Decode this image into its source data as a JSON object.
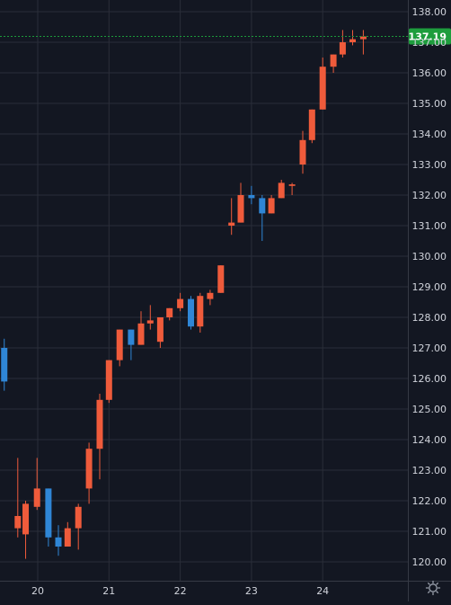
{
  "chart_data": {
    "type": "candlestick",
    "title": "",
    "xlabel": "",
    "ylabel": "",
    "ylim": [
      119.5,
      138.3
    ],
    "xlim": [
      19.52,
      24.95
    ],
    "grid": true,
    "y_ticks": [
      "120.00",
      "121.00",
      "122.00",
      "123.00",
      "124.00",
      "125.00",
      "126.00",
      "127.00",
      "128.00",
      "129.00",
      "130.00",
      "131.00",
      "132.00",
      "133.00",
      "134.00",
      "135.00",
      "136.00",
      "137.00",
      "138.00"
    ],
    "x_ticks": [
      "20",
      "21",
      "22",
      "23",
      "24"
    ],
    "last_price": "137.19",
    "candles": [
      {
        "x": 19.53,
        "open": 127.0,
        "high": 127.3,
        "low": 125.6,
        "close": 125.9
      },
      {
        "x": 19.72,
        "open": 121.1,
        "high": 123.4,
        "low": 120.8,
        "close": 121.5
      },
      {
        "x": 19.83,
        "open": 120.9,
        "high": 122.0,
        "low": 120.1,
        "close": 121.9
      },
      {
        "x": 19.99,
        "open": 121.8,
        "high": 123.4,
        "low": 121.7,
        "close": 122.4
      },
      {
        "x": 20.15,
        "open": 122.4,
        "high": 122.4,
        "low": 120.5,
        "close": 120.8
      },
      {
        "x": 20.29,
        "open": 120.8,
        "high": 121.2,
        "low": 120.2,
        "close": 120.5
      },
      {
        "x": 20.42,
        "open": 120.5,
        "high": 121.3,
        "low": 120.5,
        "close": 121.1
      },
      {
        "x": 20.57,
        "open": 121.1,
        "high": 121.9,
        "low": 120.4,
        "close": 121.8
      },
      {
        "x": 20.72,
        "open": 122.4,
        "high": 123.9,
        "low": 121.9,
        "close": 123.7
      },
      {
        "x": 20.87,
        "open": 123.7,
        "high": 125.5,
        "low": 122.7,
        "close": 125.3
      },
      {
        "x": 21.0,
        "open": 125.3,
        "high": 126.6,
        "low": 125.2,
        "close": 126.6
      },
      {
        "x": 21.15,
        "open": 126.6,
        "high": 127.6,
        "low": 126.4,
        "close": 127.6
      },
      {
        "x": 21.31,
        "open": 127.6,
        "high": 127.6,
        "low": 126.6,
        "close": 127.1
      },
      {
        "x": 21.45,
        "open": 127.1,
        "high": 128.2,
        "low": 127.1,
        "close": 127.8
      },
      {
        "x": 21.58,
        "open": 127.8,
        "high": 128.4,
        "low": 127.6,
        "close": 127.9
      },
      {
        "x": 21.72,
        "open": 127.2,
        "high": 128.0,
        "low": 127.0,
        "close": 128.0
      },
      {
        "x": 21.85,
        "open": 128.0,
        "high": 128.3,
        "low": 127.9,
        "close": 128.3
      },
      {
        "x": 22.0,
        "open": 128.3,
        "high": 128.8,
        "low": 128.2,
        "close": 128.6
      },
      {
        "x": 22.15,
        "open": 128.6,
        "high": 128.7,
        "low": 127.6,
        "close": 127.7
      },
      {
        "x": 22.28,
        "open": 127.7,
        "high": 128.8,
        "low": 127.5,
        "close": 128.7
      },
      {
        "x": 22.42,
        "open": 128.6,
        "high": 128.9,
        "low": 128.4,
        "close": 128.8
      },
      {
        "x": 22.57,
        "open": 128.8,
        "high": 129.7,
        "low": 128.8,
        "close": 129.7
      },
      {
        "x": 22.72,
        "open": 131.0,
        "high": 131.9,
        "low": 130.7,
        "close": 131.1
      },
      {
        "x": 22.85,
        "open": 131.1,
        "high": 132.4,
        "low": 131.1,
        "close": 132.0
      },
      {
        "x": 23.0,
        "open": 132.0,
        "high": 132.3,
        "low": 131.7,
        "close": 131.9
      },
      {
        "x": 23.15,
        "open": 131.9,
        "high": 132.0,
        "low": 130.5,
        "close": 131.4
      },
      {
        "x": 23.28,
        "open": 131.4,
        "high": 132.0,
        "low": 131.4,
        "close": 131.9
      },
      {
        "x": 23.42,
        "open": 131.9,
        "high": 132.5,
        "low": 131.9,
        "close": 132.4
      },
      {
        "x": 23.57,
        "open": 132.3,
        "high": 132.4,
        "low": 132.0,
        "close": 132.35
      },
      {
        "x": 23.72,
        "open": 133.0,
        "high": 134.1,
        "low": 132.7,
        "close": 133.8
      },
      {
        "x": 23.85,
        "open": 133.8,
        "high": 134.8,
        "low": 133.7,
        "close": 134.8
      },
      {
        "x": 24.0,
        "open": 134.8,
        "high": 136.5,
        "low": 134.8,
        "close": 136.2
      },
      {
        "x": 24.15,
        "open": 136.2,
        "high": 136.6,
        "low": 136.0,
        "close": 136.6
      },
      {
        "x": 24.28,
        "open": 136.6,
        "high": 137.4,
        "low": 136.5,
        "close": 137.0
      },
      {
        "x": 24.42,
        "open": 137.0,
        "high": 137.4,
        "low": 136.9,
        "close": 137.1
      },
      {
        "x": 24.57,
        "open": 137.1,
        "high": 137.4,
        "low": 136.6,
        "close": 137.19
      }
    ]
  },
  "colors": {
    "background": "#131722",
    "grid": "#2a2e39",
    "text": "#d1d4dc",
    "up": "#ef5b3b",
    "down": "#2f86d6",
    "price_line": "#1c9a3b",
    "price_label_bg": "#1e9d3d",
    "price_label_text": "#ffffff"
  },
  "icons": {
    "settings": "settings-gear-icon"
  }
}
